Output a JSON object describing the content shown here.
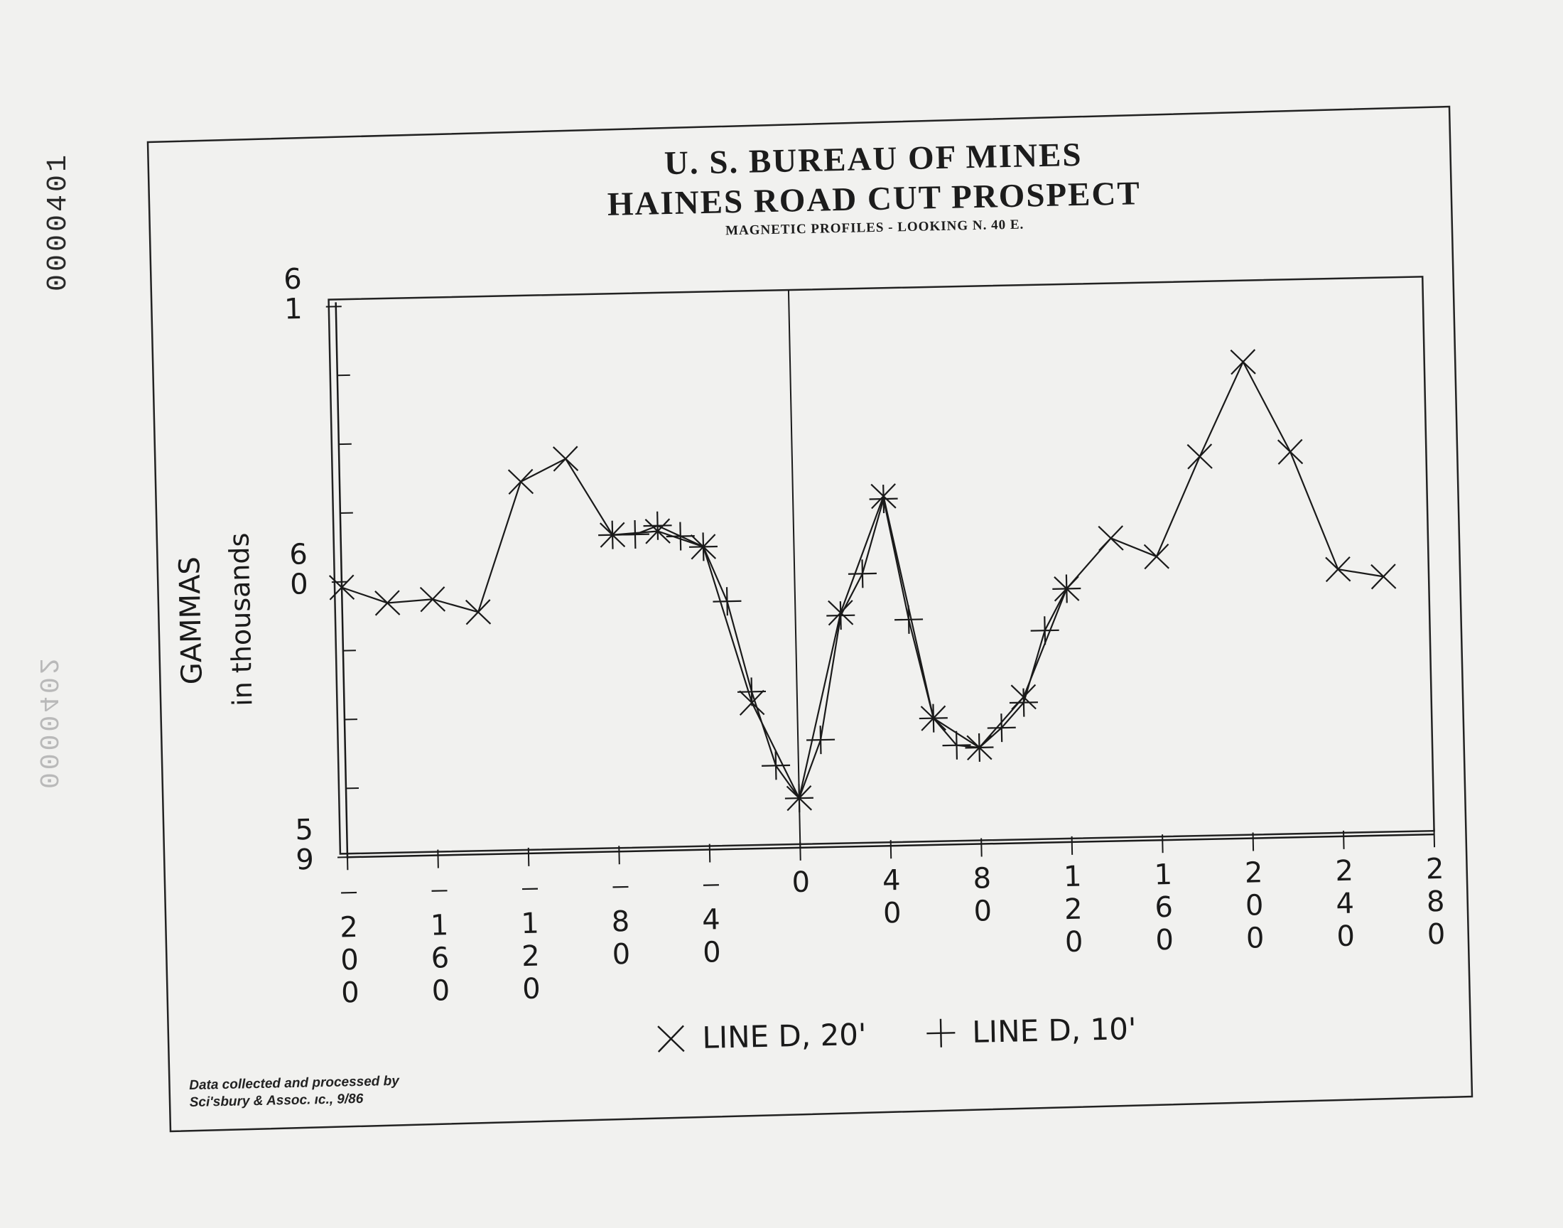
{
  "document": {
    "id_stamp": "0000401",
    "ghost_stamp": "0000402",
    "title_line1": "U. S. BUREAU OF MINES",
    "title_line2": "HAINES ROAD CUT PROSPECT",
    "subtitle": "MAGNETIC PROFILES - LOOKING N. 40 E.",
    "credit_line1": "Data collected and processed by",
    "credit_line2": "Sci'sbury & Assoc. ıc., 9/86"
  },
  "colors": {
    "ink": "#1a1a1a",
    "paper": "#f1f1ef"
  },
  "chart_data": {
    "type": "line",
    "title": "HAINES ROAD CUT PROSPECT",
    "subtitle": "MAGNETIC PROFILES - LOOKING N. 40 E.",
    "ylabel_line1": "GAMMAS",
    "ylabel_line2": "in thousands",
    "xlabel": "",
    "xlim": [
      -200,
      280
    ],
    "ylim": [
      59,
      61
    ],
    "x_ticks": [
      -200,
      -160,
      -120,
      -80,
      -40,
      0,
      40,
      80,
      120,
      160,
      200,
      240,
      280
    ],
    "x_tick_labels": [
      "-200",
      "-160",
      "-120",
      "-80",
      "-40",
      "0",
      "40",
      "80",
      "120",
      "160",
      "200",
      "240",
      "280"
    ],
    "y_tick_labels": [
      {
        "value": 61,
        "text": "61"
      },
      {
        "value": 60,
        "text": "60"
      },
      {
        "value": 59,
        "text": "59"
      }
    ],
    "series": [
      {
        "name": "LINE D, 20'",
        "marker": "x",
        "points": [
          [
            -200,
            59.98
          ],
          [
            -180,
            59.92
          ],
          [
            -160,
            59.93
          ],
          [
            -140,
            59.88
          ],
          [
            -120,
            60.35
          ],
          [
            -100,
            60.43
          ],
          [
            -80,
            60.15
          ],
          [
            -60,
            60.16
          ],
          [
            -40,
            60.1
          ],
          [
            -20,
            59.53
          ],
          [
            0,
            59.18
          ],
          [
            20,
            59.85
          ],
          [
            40,
            60.27
          ],
          [
            60,
            59.46
          ],
          [
            80,
            59.35
          ],
          [
            100,
            59.53
          ],
          [
            120,
            59.92
          ],
          [
            140,
            60.1
          ],
          [
            160,
            60.03
          ],
          [
            180,
            60.39
          ],
          [
            200,
            60.73
          ],
          [
            220,
            60.4
          ],
          [
            240,
            59.97
          ],
          [
            260,
            59.94
          ]
        ]
      },
      {
        "name": "LINE D, 10'",
        "marker": "plus",
        "points": [
          [
            -80,
            60.15
          ],
          [
            -70,
            60.15
          ],
          [
            -60,
            60.18
          ],
          [
            -50,
            60.14
          ],
          [
            -40,
            60.1
          ],
          [
            -30,
            59.9
          ],
          [
            -20,
            59.57
          ],
          [
            -10,
            59.3
          ],
          [
            0,
            59.18
          ],
          [
            10,
            59.39
          ],
          [
            20,
            59.84
          ],
          [
            30,
            59.99
          ],
          [
            40,
            60.26
          ],
          [
            50,
            59.82
          ],
          [
            60,
            59.46
          ],
          [
            70,
            59.36
          ],
          [
            80,
            59.35
          ],
          [
            90,
            59.42
          ],
          [
            100,
            59.51
          ],
          [
            110,
            59.77
          ],
          [
            120,
            59.92
          ]
        ]
      }
    ],
    "legend_position": "bottom-center",
    "grid": false,
    "zero_line": true
  }
}
